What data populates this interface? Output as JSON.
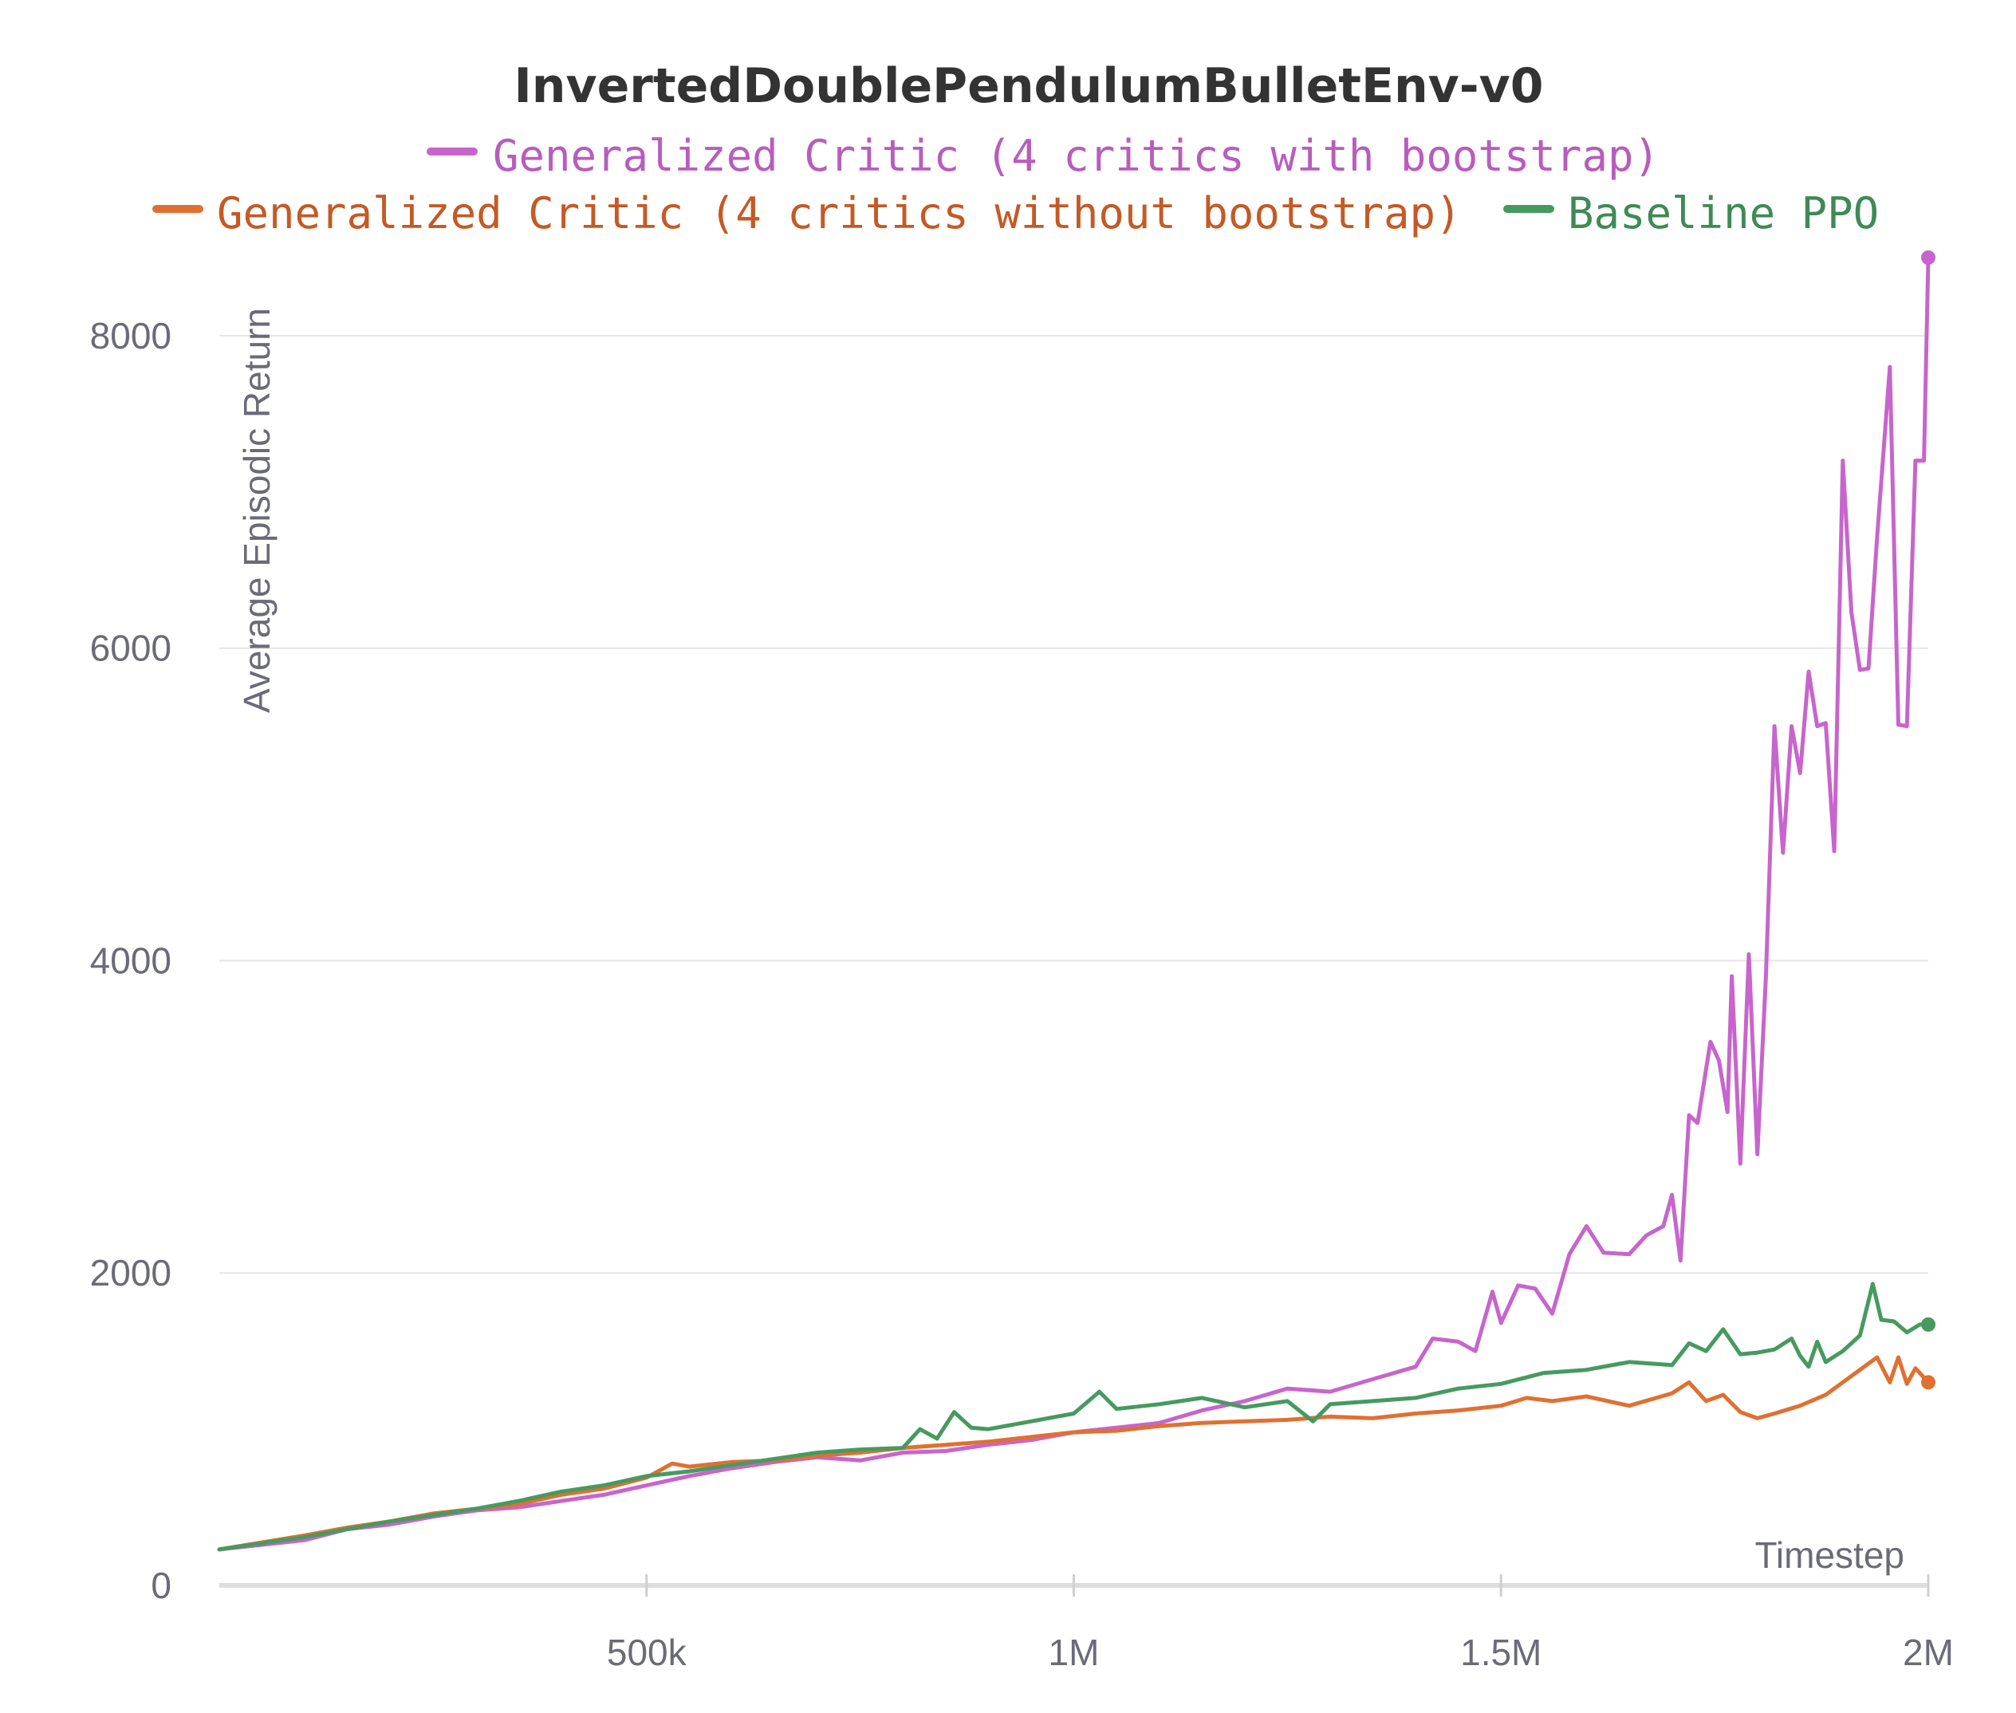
{
  "chart_data": {
    "type": "line",
    "title": "InvertedDoublePendulumBulletEnv-v0",
    "xlabel": "Timestep",
    "ylabel": "Average Episodic Return",
    "xlim": [
      0,
      2000000
    ],
    "ylim": [
      0,
      8500
    ],
    "x_ticks": [
      {
        "value": 500000,
        "label": "500k"
      },
      {
        "value": 1000000,
        "label": "1M"
      },
      {
        "value": 1500000,
        "label": "1.5M"
      },
      {
        "value": 2000000,
        "label": "2M"
      }
    ],
    "y_ticks": [
      {
        "value": 0,
        "label": "0"
      },
      {
        "value": 2000,
        "label": "2000"
      },
      {
        "value": 4000,
        "label": "4000"
      },
      {
        "value": 6000,
        "label": "6000"
      },
      {
        "value": 8000,
        "label": "8000"
      }
    ],
    "grid": true,
    "legend_position": "top",
    "series": [
      {
        "name": "Generalized Critic (4 critics with bootstrap)",
        "color": "#c765cc",
        "points": [
          [
            0,
            230
          ],
          [
            100000,
            290
          ],
          [
            150000,
            360
          ],
          [
            200000,
            390
          ],
          [
            250000,
            440
          ],
          [
            300000,
            480
          ],
          [
            350000,
            500
          ],
          [
            400000,
            540
          ],
          [
            450000,
            580
          ],
          [
            500000,
            640
          ],
          [
            550000,
            700
          ],
          [
            600000,
            750
          ],
          [
            650000,
            790
          ],
          [
            700000,
            820
          ],
          [
            750000,
            800
          ],
          [
            800000,
            850
          ],
          [
            850000,
            860
          ],
          [
            900000,
            900
          ],
          [
            950000,
            930
          ],
          [
            1000000,
            980
          ],
          [
            1050000,
            1010
          ],
          [
            1100000,
            1040
          ],
          [
            1150000,
            1120
          ],
          [
            1200000,
            1180
          ],
          [
            1250000,
            1260
          ],
          [
            1300000,
            1240
          ],
          [
            1350000,
            1320
          ],
          [
            1400000,
            1400
          ],
          [
            1420000,
            1580
          ],
          [
            1450000,
            1560
          ],
          [
            1470000,
            1500
          ],
          [
            1490000,
            1880
          ],
          [
            1500000,
            1680
          ],
          [
            1520000,
            1920
          ],
          [
            1540000,
            1900
          ],
          [
            1560000,
            1740
          ],
          [
            1580000,
            2120
          ],
          [
            1600000,
            2300
          ],
          [
            1620000,
            2130
          ],
          [
            1650000,
            2120
          ],
          [
            1670000,
            2240
          ],
          [
            1690000,
            2300
          ],
          [
            1700000,
            2500
          ],
          [
            1710000,
            2080
          ],
          [
            1720000,
            3010
          ],
          [
            1730000,
            2960
          ],
          [
            1745000,
            3480
          ],
          [
            1755000,
            3360
          ],
          [
            1765000,
            3030
          ],
          [
            1770000,
            3900
          ],
          [
            1780000,
            2700
          ],
          [
            1790000,
            4040
          ],
          [
            1800000,
            2760
          ],
          [
            1810000,
            3900
          ],
          [
            1820000,
            5500
          ],
          [
            1830000,
            4690
          ],
          [
            1840000,
            5500
          ],
          [
            1850000,
            5200
          ],
          [
            1860000,
            5850
          ],
          [
            1870000,
            5500
          ],
          [
            1880000,
            5520
          ],
          [
            1890000,
            4700
          ],
          [
            1900000,
            7200
          ],
          [
            1910000,
            6230
          ],
          [
            1920000,
            5860
          ],
          [
            1930000,
            5870
          ],
          [
            1940000,
            6700
          ],
          [
            1955000,
            7800
          ],
          [
            1965000,
            5510
          ],
          [
            1975000,
            5500
          ],
          [
            1985000,
            7200
          ],
          [
            1995000,
            7200
          ],
          [
            2000000,
            8500
          ]
        ]
      },
      {
        "name": "Generalized Critic (4 critics without bootstrap)",
        "color": "#e07032",
        "points": [
          [
            0,
            230
          ],
          [
            100000,
            320
          ],
          [
            150000,
            370
          ],
          [
            200000,
            410
          ],
          [
            250000,
            460
          ],
          [
            300000,
            490
          ],
          [
            350000,
            520
          ],
          [
            400000,
            580
          ],
          [
            450000,
            620
          ],
          [
            500000,
            690
          ],
          [
            530000,
            780
          ],
          [
            550000,
            760
          ],
          [
            600000,
            790
          ],
          [
            650000,
            800
          ],
          [
            700000,
            830
          ],
          [
            750000,
            850
          ],
          [
            800000,
            880
          ],
          [
            850000,
            900
          ],
          [
            900000,
            920
          ],
          [
            950000,
            950
          ],
          [
            1000000,
            980
          ],
          [
            1050000,
            990
          ],
          [
            1100000,
            1020
          ],
          [
            1150000,
            1040
          ],
          [
            1200000,
            1050
          ],
          [
            1250000,
            1060
          ],
          [
            1300000,
            1080
          ],
          [
            1350000,
            1070
          ],
          [
            1400000,
            1100
          ],
          [
            1450000,
            1120
          ],
          [
            1500000,
            1150
          ],
          [
            1530000,
            1200
          ],
          [
            1560000,
            1180
          ],
          [
            1600000,
            1210
          ],
          [
            1650000,
            1150
          ],
          [
            1700000,
            1230
          ],
          [
            1720000,
            1300
          ],
          [
            1740000,
            1180
          ],
          [
            1760000,
            1220
          ],
          [
            1780000,
            1110
          ],
          [
            1800000,
            1070
          ],
          [
            1820000,
            1100
          ],
          [
            1850000,
            1150
          ],
          [
            1880000,
            1220
          ],
          [
            1900000,
            1300
          ],
          [
            1920000,
            1380
          ],
          [
            1940000,
            1460
          ],
          [
            1955000,
            1300
          ],
          [
            1965000,
            1460
          ],
          [
            1975000,
            1290
          ],
          [
            1985000,
            1390
          ],
          [
            2000000,
            1300
          ]
        ]
      },
      {
        "name": "Baseline PPO",
        "color": "#479a5f",
        "points": [
          [
            0,
            230
          ],
          [
            100000,
            310
          ],
          [
            150000,
            360
          ],
          [
            200000,
            410
          ],
          [
            250000,
            450
          ],
          [
            300000,
            490
          ],
          [
            350000,
            540
          ],
          [
            400000,
            600
          ],
          [
            450000,
            640
          ],
          [
            500000,
            700
          ],
          [
            550000,
            730
          ],
          [
            600000,
            770
          ],
          [
            650000,
            810
          ],
          [
            700000,
            850
          ],
          [
            750000,
            870
          ],
          [
            800000,
            880
          ],
          [
            820000,
            1000
          ],
          [
            840000,
            940
          ],
          [
            860000,
            1110
          ],
          [
            880000,
            1010
          ],
          [
            900000,
            1000
          ],
          [
            950000,
            1050
          ],
          [
            1000000,
            1100
          ],
          [
            1030000,
            1240
          ],
          [
            1050000,
            1130
          ],
          [
            1100000,
            1160
          ],
          [
            1150000,
            1200
          ],
          [
            1200000,
            1140
          ],
          [
            1250000,
            1180
          ],
          [
            1280000,
            1050
          ],
          [
            1300000,
            1160
          ],
          [
            1350000,
            1180
          ],
          [
            1400000,
            1200
          ],
          [
            1450000,
            1260
          ],
          [
            1500000,
            1290
          ],
          [
            1550000,
            1360
          ],
          [
            1600000,
            1380
          ],
          [
            1650000,
            1430
          ],
          [
            1700000,
            1410
          ],
          [
            1720000,
            1550
          ],
          [
            1740000,
            1500
          ],
          [
            1760000,
            1640
          ],
          [
            1780000,
            1480
          ],
          [
            1800000,
            1490
          ],
          [
            1820000,
            1510
          ],
          [
            1840000,
            1580
          ],
          [
            1850000,
            1470
          ],
          [
            1860000,
            1400
          ],
          [
            1870000,
            1560
          ],
          [
            1880000,
            1430
          ],
          [
            1900000,
            1500
          ],
          [
            1920000,
            1600
          ],
          [
            1935000,
            1930
          ],
          [
            1945000,
            1700
          ],
          [
            1960000,
            1690
          ],
          [
            1975000,
            1620
          ],
          [
            1990000,
            1670
          ],
          [
            2000000,
            1670
          ]
        ]
      }
    ]
  }
}
